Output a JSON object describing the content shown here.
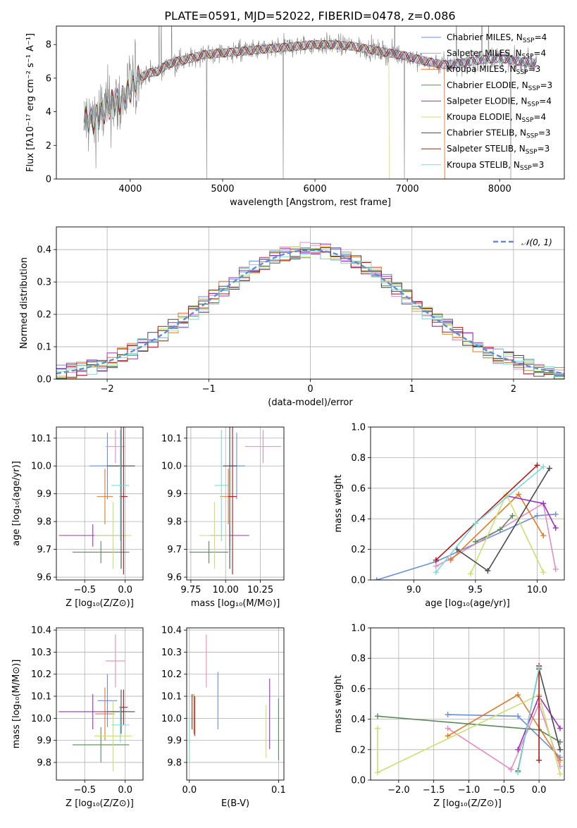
{
  "colors": {
    "Chabrier MILES": "#6a8fd8",
    "Salpeter MILES": "#e58cbf",
    "Kroupa MILES": "#e07b2a",
    "Chabrier ELODIE": "#5a8a5a",
    "Salpeter ELODIE": "#9b2fc4",
    "Kroupa ELODIE": "#c8e070",
    "Chabrier STELIB": "#4a4a4a",
    "Salpeter STELIB": "#b01818",
    "Kroupa STELIB": "#7fd8d8",
    "data": "#808080",
    "normal": "#5b8ed6"
  },
  "chart_data": [
    {
      "id": "spectrum",
      "type": "line",
      "title": "PLATE=0591, MJD=52022, FIBERID=0478, z=0.086",
      "xlabel": "wavelength [Angstrom, rest frame]",
      "ylabel": "Flux [fλ10⁻¹⁷ erg cm⁻² s⁻¹ A⁻¹]",
      "xlim": [
        3200,
        8700
      ],
      "ylim": [
        0,
        9.1
      ],
      "xticks": [
        4000,
        5000,
        6000,
        7000,
        8000
      ],
      "yticks": [
        0,
        2,
        4,
        6,
        8
      ],
      "grid": false,
      "legend_placement": "top-right",
      "legend": [
        {
          "label": "Chabrier MILES, N",
          "sub": "SSP",
          "suffix": "=4",
          "model": "Chabrier MILES"
        },
        {
          "label": "Salpeter MILES, N",
          "sub": "SSP",
          "suffix": "=4",
          "model": "Salpeter MILES"
        },
        {
          "label": "Kroupa MILES, N",
          "sub": "SSP",
          "suffix": "=3",
          "model": "Kroupa MILES"
        },
        {
          "label": "Chabrier ELODIE, N",
          "sub": "SSP",
          "suffix": "=3",
          "model": "Chabrier ELODIE"
        },
        {
          "label": "Salpeter ELODIE, N",
          "sub": "SSP",
          "suffix": "=4",
          "model": "Salpeter ELODIE"
        },
        {
          "label": "Kroupa ELODIE, N",
          "sub": "SSP",
          "suffix": "=4",
          "model": "Kroupa ELODIE"
        },
        {
          "label": "Chabrier STELIB, N",
          "sub": "SSP",
          "suffix": "=3",
          "model": "Chabrier STELIB"
        },
        {
          "label": "Salpeter STELIB, N",
          "sub": "SSP",
          "suffix": "=3",
          "model": "Salpeter STELIB"
        },
        {
          "label": "Kroupa STELIB, N",
          "sub": "SSP",
          "suffix": "=3",
          "model": "Kroupa STELIB"
        }
      ],
      "continuum": {
        "x": [
          3500,
          3600,
          3700,
          3800,
          3900,
          4000,
          4100,
          4200,
          4300,
          4400,
          4500,
          4600,
          4800,
          5000,
          5200,
          5400,
          5600,
          5800,
          6000,
          6200,
          6400,
          6600,
          6800,
          7000,
          7200,
          7400,
          7600,
          7800,
          8000,
          8200,
          8400
        ],
        "y": [
          3.5,
          3.4,
          4.0,
          4.5,
          4.6,
          5.4,
          6.0,
          6.3,
          6.4,
          6.8,
          7.0,
          7.1,
          7.4,
          7.5,
          7.6,
          7.7,
          7.8,
          7.9,
          8.0,
          8.0,
          7.9,
          7.7,
          7.5,
          7.3,
          7.0,
          6.8,
          6.9,
          7.1,
          7.2,
          7.0,
          6.9
        ]
      },
      "spectrum_range": [
        3500,
        8400
      ],
      "model_cutoffs": {
        "Kroupa ELODIE": 6800,
        "Kroupa MILES": 7400,
        "Salpeter MILES": 7400
      }
    },
    {
      "id": "residuals",
      "type": "histogram",
      "xlabel": "(data-model)/error",
      "ylabel": "Normed distribution",
      "xlim": [
        -2.5,
        2.5
      ],
      "ylim": [
        0,
        0.47
      ],
      "xticks": [
        -2,
        -1,
        0,
        1,
        2
      ],
      "yticks": [
        0.0,
        0.1,
        0.2,
        0.3,
        0.4
      ],
      "grid": true,
      "legend_placement": "top-right",
      "legend_label": "𝒩(0, 1)",
      "bin_width": 0.1
    },
    {
      "id": "age_vs_Z",
      "type": "scatter",
      "xlabel": "Z [log₁₀(Z/Z⊙)]",
      "ylabel": "age  [log₁₀(age/yr)]",
      "xlim": [
        -0.85,
        0.22
      ],
      "ylim": [
        9.59,
        10.14
      ],
      "xticks": [
        -0.5,
        0.0
      ],
      "yticks": [
        9.6,
        9.7,
        9.8,
        9.9,
        10.0,
        10.1
      ],
      "grid": true,
      "points": [
        {
          "model": "Chabrier MILES",
          "x": -0.22,
          "y": 10.0,
          "xerr": 0.22,
          "yerr": 0.12
        },
        {
          "model": "Salpeter MILES",
          "x": -0.12,
          "y": 10.07,
          "xerr": 0.12,
          "yerr": 0.06
        },
        {
          "model": "Kroupa MILES",
          "x": -0.25,
          "y": 9.89,
          "xerr": 0.1,
          "yerr": 0.1
        },
        {
          "model": "Chabrier ELODIE",
          "x": -0.3,
          "y": 9.69,
          "xerr": 0.35,
          "yerr": 0.04
        },
        {
          "model": "Salpeter ELODIE",
          "x": -0.4,
          "y": 9.75,
          "xerr": 0.42,
          "yerr": 0.04
        },
        {
          "model": "Kroupa ELODIE",
          "x": -0.15,
          "y": 9.75,
          "xerr": 0.23,
          "yerr": 0.12
        },
        {
          "model": "Chabrier STELIB",
          "x": -0.05,
          "y": 10.0,
          "xerr": 0.17,
          "yerr": 0.37
        },
        {
          "model": "Salpeter STELIB",
          "x": -0.02,
          "y": 9.89,
          "xerr": 0.05,
          "yerr": 0.28
        },
        {
          "model": "Kroupa STELIB",
          "x": -0.06,
          "y": 9.93,
          "xerr": 0.11,
          "yerr": 0.2
        }
      ]
    },
    {
      "id": "age_vs_mass",
      "type": "scatter",
      "xlabel": "mass [log₁₀(M/M⊙)]",
      "ylabel": "",
      "xlim": [
        9.72,
        10.42
      ],
      "ylim": [
        9.59,
        10.14
      ],
      "xticks": [
        9.75,
        10.0,
        10.25
      ],
      "yticks": [
        9.6,
        9.7,
        9.8,
        9.9,
        10.0,
        10.1
      ],
      "grid": true,
      "points": [
        {
          "model": "Chabrier MILES",
          "x": 10.08,
          "y": 10.0,
          "xerr": 0.06,
          "yerr": 0.12
        },
        {
          "model": "Salpeter MILES",
          "x": 10.27,
          "y": 10.07,
          "xerr": 0.13,
          "yerr": 0.06
        },
        {
          "model": "Kroupa MILES",
          "x": 10.02,
          "y": 9.89,
          "xerr": 0.06,
          "yerr": 0.1
        },
        {
          "model": "Chabrier ELODIE",
          "x": 9.88,
          "y": 9.69,
          "xerr": 0.14,
          "yerr": 0.04
        },
        {
          "model": "Salpeter ELODIE",
          "x": 10.03,
          "y": 9.75,
          "xerr": 0.14,
          "yerr": 0.04
        },
        {
          "model": "Kroupa ELODIE",
          "x": 9.92,
          "y": 9.75,
          "xerr": 0.11,
          "yerr": 0.12
        },
        {
          "model": "Chabrier STELIB",
          "x": 10.03,
          "y": 10.0,
          "xerr": 0.05,
          "yerr": 0.37
        },
        {
          "model": "Salpeter STELIB",
          "x": 10.05,
          "y": 9.89,
          "xerr": 0.03,
          "yerr": 0.28
        },
        {
          "model": "Kroupa STELIB",
          "x": 9.97,
          "y": 9.93,
          "xerr": 0.05,
          "yerr": 0.2
        }
      ]
    },
    {
      "id": "massweight_vs_age",
      "type": "line",
      "xlabel": "age  [log₁₀(age/yr)]",
      "ylabel": "mass weight",
      "xlim": [
        8.65,
        10.22
      ],
      "ylim": [
        0,
        1
      ],
      "xticks": [
        9.0,
        9.5,
        10.0
      ],
      "yticks": [
        0.0,
        0.2,
        0.4,
        0.6,
        0.8,
        1.0
      ],
      "grid": true,
      "series": [
        {
          "model": "Chabrier MILES",
          "x": [
            8.7,
            9.18,
            10.0,
            10.15
          ],
          "y": [
            0.0,
            0.12,
            0.42,
            0.43
          ]
        },
        {
          "model": "Salpeter MILES",
          "x": [
            9.18,
            9.3,
            10.05,
            10.15
          ],
          "y": [
            0.09,
            0.14,
            0.5,
            0.07
          ]
        },
        {
          "model": "Kroupa MILES",
          "x": [
            9.3,
            9.85,
            10.05
          ],
          "y": [
            0.13,
            0.56,
            0.29
          ]
        },
        {
          "model": "Chabrier ELODIE",
          "x": [
            9.5,
            9.7,
            9.8
          ],
          "y": [
            0.25,
            0.33,
            0.42
          ]
        },
        {
          "model": "Salpeter ELODIE",
          "x": [
            9.75,
            10.05,
            10.15
          ],
          "y": [
            0.55,
            0.5,
            0.34
          ]
        },
        {
          "model": "Kroupa ELODIE",
          "x": [
            9.46,
            9.75,
            10.05
          ],
          "y": [
            0.04,
            0.56,
            0.05
          ]
        },
        {
          "model": "Chabrier STELIB",
          "x": [
            9.35,
            9.6,
            10.1
          ],
          "y": [
            0.2,
            0.06,
            0.73
          ]
        },
        {
          "model": "Salpeter STELIB",
          "x": [
            9.18,
            10.0
          ],
          "y": [
            0.13,
            0.75
          ]
        },
        {
          "model": "Kroupa STELIB",
          "x": [
            9.18,
            9.5,
            10.05
          ],
          "y": [
            0.05,
            0.37,
            0.74
          ]
        }
      ]
    },
    {
      "id": "mass_vs_Z",
      "type": "scatter",
      "xlabel": "Z [log₁₀(Z/Z⊙)]",
      "ylabel": "mass [log₁₀(M/M⊙)]",
      "xlim": [
        -0.85,
        0.22
      ],
      "ylim": [
        9.72,
        10.41
      ],
      "xticks": [
        -0.5,
        0.0
      ],
      "yticks": [
        9.8,
        9.9,
        10.0,
        10.1,
        10.2,
        10.3,
        10.4
      ],
      "grid": true,
      "points": [
        {
          "model": "Chabrier MILES",
          "x": -0.22,
          "y": 10.08,
          "xerr": 0.12,
          "yerr": 0.12
        },
        {
          "model": "Salpeter MILES",
          "x": -0.12,
          "y": 10.26,
          "xerr": 0.12,
          "yerr": 0.12
        },
        {
          "model": "Kroupa MILES",
          "x": -0.25,
          "y": 10.02,
          "xerr": 0.12,
          "yerr": 0.12
        },
        {
          "model": "Chabrier ELODIE",
          "x": -0.3,
          "y": 9.88,
          "xerr": 0.35,
          "yerr": 0.08
        },
        {
          "model": "Salpeter ELODIE",
          "x": -0.4,
          "y": 10.03,
          "xerr": 0.42,
          "yerr": 0.08
        },
        {
          "model": "Kroupa ELODIE",
          "x": -0.15,
          "y": 9.92,
          "xerr": 0.23,
          "yerr": 0.16
        },
        {
          "model": "Chabrier STELIB",
          "x": -0.05,
          "y": 10.03,
          "xerr": 0.17,
          "yerr": 0.1
        },
        {
          "model": "Salpeter STELIB",
          "x": -0.02,
          "y": 10.05,
          "xerr": 0.05,
          "yerr": 0.08
        },
        {
          "model": "Kroupa STELIB",
          "x": -0.06,
          "y": 9.97,
          "xerr": 0.11,
          "yerr": 0.08
        }
      ]
    },
    {
      "id": "mass_vs_EBV",
      "type": "scatter",
      "xlabel": "E(B-V)",
      "ylabel": "",
      "xlim": [
        -0.003,
        0.106
      ],
      "ylim": [
        9.72,
        10.41
      ],
      "xticks": [
        0.0,
        0.1
      ],
      "yticks": [
        9.8,
        9.9,
        10.0,
        10.1,
        10.2,
        10.3,
        10.4
      ],
      "grid": true,
      "points": [
        {
          "model": "Chabrier MILES",
          "x": 0.032,
          "y": 10.08,
          "yerr": 0.13
        },
        {
          "model": "Salpeter MILES",
          "x": 0.019,
          "y": 10.26,
          "yerr": 0.12
        },
        {
          "model": "Kroupa MILES",
          "x": 0.005,
          "y": 10.02,
          "yerr": 0.09
        },
        {
          "model": "Chabrier ELODIE",
          "x": 0.1,
          "y": 9.95,
          "yerr": 0.14
        },
        {
          "model": "Salpeter ELODIE",
          "x": 0.09,
          "y": 10.02,
          "yerr": 0.16
        },
        {
          "model": "Kroupa ELODIE",
          "x": 0.086,
          "y": 9.94,
          "yerr": 0.12
        },
        {
          "model": "Chabrier STELIB",
          "x": 0.003,
          "y": 10.03,
          "yerr": 0.08
        },
        {
          "model": "Salpeter STELIB",
          "x": 0.006,
          "y": 10.01,
          "yerr": 0.09
        },
        {
          "model": "Kroupa STELIB",
          "x": 0.0,
          "y": 9.9,
          "yerr": 0.1
        }
      ]
    },
    {
      "id": "massweight_vs_Z",
      "type": "line",
      "xlabel": "Z [log₁₀(Z/Z⊙)]",
      "ylabel": "mass weight",
      "xlim": [
        -2.4,
        0.36
      ],
      "ylim": [
        0,
        1
      ],
      "xticks": [
        -2.0,
        -1.5,
        -1.0,
        -0.5,
        0.0
      ],
      "yticks": [
        0.0,
        0.2,
        0.4,
        0.6,
        0.8,
        1.0
      ],
      "grid": true,
      "series": [
        {
          "model": "Chabrier MILES",
          "x": [
            -1.3,
            -0.3,
            0.3
          ],
          "y": [
            0.43,
            0.42,
            0.15
          ]
        },
        {
          "model": "Salpeter MILES",
          "x": [
            -1.3,
            -0.4,
            0.0,
            0.3
          ],
          "y": [
            0.34,
            0.07,
            0.5,
            0.09
          ]
        },
        {
          "model": "Kroupa MILES",
          "x": [
            -1.3,
            -0.3,
            0.3
          ],
          "y": [
            0.29,
            0.56,
            0.13
          ]
        },
        {
          "model": "Chabrier ELODIE",
          "x": [
            -2.3,
            0.0,
            0.3
          ],
          "y": [
            0.42,
            0.33,
            0.25
          ]
        },
        {
          "model": "Salpeter ELODIE",
          "x": [
            -0.3,
            0.0,
            0.3
          ],
          "y": [
            0.2,
            0.55,
            0.34
          ]
        },
        {
          "model": "Kroupa ELODIE",
          "x": [
            -2.3,
            -2.3,
            0.0,
            0.3
          ],
          "y": [
            0.34,
            0.05,
            0.56,
            0.04
          ]
        },
        {
          "model": "Chabrier STELIB",
          "x": [
            -0.3,
            0.0,
            0.3
          ],
          "y": [
            0.06,
            0.73,
            0.2
          ]
        },
        {
          "model": "Salpeter STELIB",
          "x": [
            0.0,
            0.0
          ],
          "y": [
            0.13,
            0.75
          ]
        },
        {
          "model": "Kroupa STELIB",
          "x": [
            -0.3,
            0.0
          ],
          "y": [
            0.05,
            0.74
          ]
        }
      ]
    }
  ]
}
